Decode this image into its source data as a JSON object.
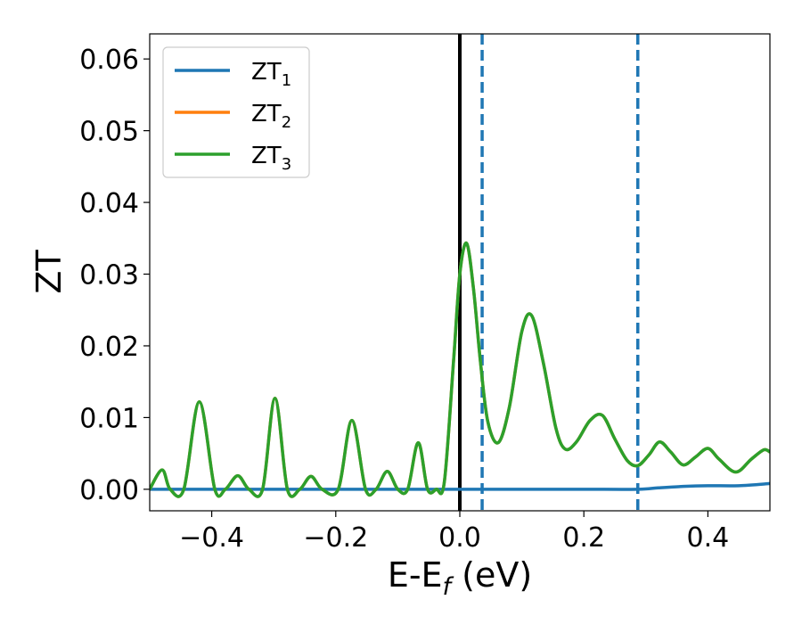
{
  "chart_data": {
    "type": "line",
    "title": "",
    "xlabel": {
      "main": "E-E",
      "sub": "f",
      "unit": " (eV)"
    },
    "ylabel": "ZT",
    "xlim": [
      -0.5,
      0.5
    ],
    "ylim": [
      -0.003,
      0.0635
    ],
    "xticks": [
      -0.4,
      -0.2,
      0.0,
      0.2,
      0.4
    ],
    "xtick_labels": [
      "−0.4",
      "−0.2",
      "0.0",
      "0.2",
      "0.4"
    ],
    "yticks": [
      0.0,
      0.01,
      0.02,
      0.03,
      0.04,
      0.05,
      0.06
    ],
    "ytick_labels": [
      "0.00",
      "0.01",
      "0.02",
      "0.03",
      "0.04",
      "0.05",
      "0.06"
    ],
    "grid": false,
    "legend_position": "upper-left",
    "reference_lines": [
      {
        "x": 0.0,
        "style": "solid",
        "color": "#000000"
      },
      {
        "x": 0.036,
        "style": "dashed",
        "color": "#1f77b4"
      },
      {
        "x": 0.287,
        "style": "dashed",
        "color": "#1f77b4"
      }
    ],
    "series": [
      {
        "name": {
          "main": "ZT",
          "sub": "1"
        },
        "color": "#1f77b4",
        "x": [
          -0.5,
          -0.4,
          -0.3,
          -0.2,
          -0.1,
          0.0,
          0.1,
          0.2,
          0.287,
          0.32,
          0.36,
          0.4,
          0.45,
          0.5
        ],
        "y": [
          0,
          0,
          0,
          0,
          0,
          0,
          0,
          0,
          0,
          0.0002,
          0.0004,
          0.0005,
          0.0005,
          0.0008
        ]
      },
      {
        "name": {
          "main": "ZT",
          "sub": "2"
        },
        "color": "#ff7f0e",
        "x": [
          -0.5,
          -0.48,
          -0.467,
          -0.445,
          -0.42,
          -0.395,
          -0.378,
          -0.358,
          -0.34,
          -0.318,
          -0.298,
          -0.278,
          -0.258,
          -0.24,
          -0.222,
          -0.196,
          -0.174,
          -0.152,
          -0.135,
          -0.117,
          -0.1,
          -0.084,
          -0.067,
          -0.052,
          -0.038,
          -0.025,
          -0.01,
          0.0,
          0.011,
          0.022,
          0.033,
          0.045,
          0.062,
          0.08,
          0.1,
          0.116,
          0.135,
          0.155,
          0.17,
          0.188,
          0.21,
          0.23,
          0.25,
          0.27,
          0.287,
          0.305,
          0.322,
          0.34,
          0.36,
          0.38,
          0.4,
          0.418,
          0.445,
          0.47,
          0.49,
          0.5
        ],
        "y": [
          0.0,
          0.0027,
          0.0,
          0.0,
          0.0122,
          0.0,
          0.0,
          0.0019,
          0.0,
          0.0,
          0.0127,
          0.0,
          0.0,
          0.0018,
          0.0,
          0.0,
          0.0096,
          0.0,
          0.0,
          0.0025,
          0.0,
          0.0,
          0.0065,
          0.0,
          0.0,
          0.001,
          0.018,
          0.03,
          0.0343,
          0.028,
          0.018,
          0.0095,
          0.0065,
          0.0115,
          0.022,
          0.0242,
          0.0175,
          0.0085,
          0.0056,
          0.0066,
          0.0096,
          0.0103,
          0.007,
          0.004,
          0.0033,
          0.0048,
          0.0066,
          0.0052,
          0.0034,
          0.0045,
          0.0057,
          0.0042,
          0.0024,
          0.0042,
          0.0055,
          0.0052
        ]
      },
      {
        "name": {
          "main": "ZT",
          "sub": "3"
        },
        "color": "#2ca02c",
        "x": [
          -0.5,
          -0.48,
          -0.467,
          -0.445,
          -0.42,
          -0.395,
          -0.378,
          -0.358,
          -0.34,
          -0.318,
          -0.298,
          -0.278,
          -0.258,
          -0.24,
          -0.222,
          -0.196,
          -0.174,
          -0.152,
          -0.135,
          -0.117,
          -0.1,
          -0.084,
          -0.067,
          -0.052,
          -0.038,
          -0.025,
          -0.01,
          0.0,
          0.011,
          0.022,
          0.033,
          0.045,
          0.062,
          0.08,
          0.1,
          0.116,
          0.135,
          0.155,
          0.17,
          0.188,
          0.21,
          0.23,
          0.25,
          0.27,
          0.287,
          0.305,
          0.322,
          0.34,
          0.36,
          0.38,
          0.4,
          0.418,
          0.445,
          0.47,
          0.49,
          0.5
        ],
        "y": [
          0.0,
          0.0027,
          0.0,
          0.0,
          0.0122,
          0.0,
          0.0,
          0.0019,
          0.0,
          0.0,
          0.0127,
          0.0,
          0.0,
          0.0018,
          0.0,
          0.0,
          0.0096,
          0.0,
          0.0,
          0.0025,
          0.0,
          0.0,
          0.0065,
          0.0,
          0.0,
          0.001,
          0.018,
          0.03,
          0.0343,
          0.028,
          0.018,
          0.0095,
          0.0065,
          0.0115,
          0.022,
          0.0242,
          0.0175,
          0.0085,
          0.0056,
          0.0066,
          0.0096,
          0.0103,
          0.007,
          0.004,
          0.0033,
          0.0048,
          0.0066,
          0.0052,
          0.0034,
          0.0045,
          0.0057,
          0.0042,
          0.0024,
          0.0042,
          0.0055,
          0.0052
        ]
      }
    ]
  }
}
